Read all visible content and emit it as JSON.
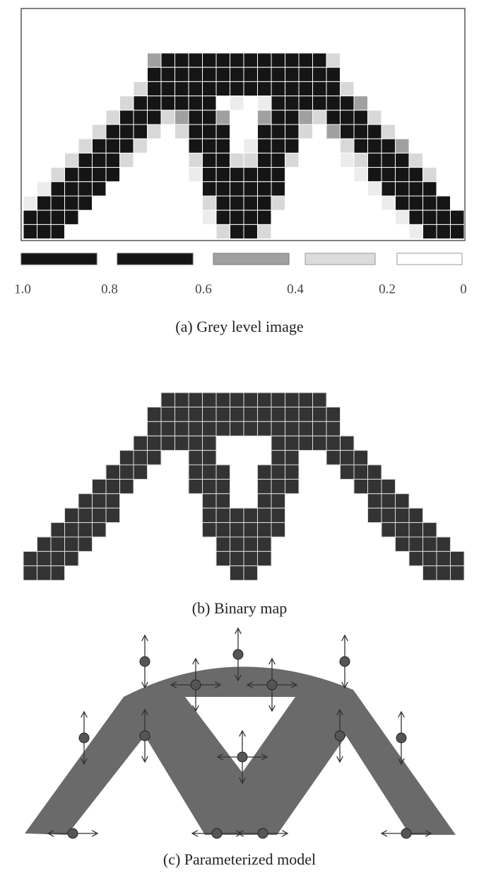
{
  "panels": [
    {
      "caption": "(a) Grey level image",
      "scale_labels": [
        "1.0",
        "0.8",
        "0.6",
        "0.4",
        "0.2",
        "0"
      ]
    },
    {
      "caption": "(b) Binary map"
    },
    {
      "caption": "(c) Parameterized model"
    }
  ]
}
